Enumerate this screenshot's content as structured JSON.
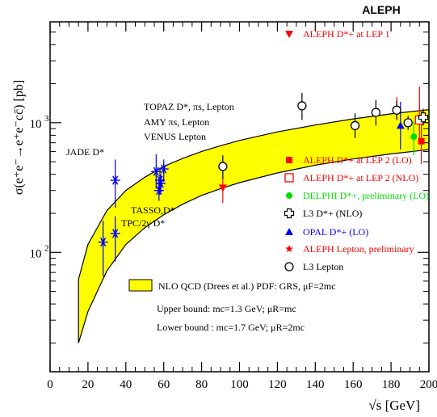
{
  "chart_data": {
    "type": "scatter",
    "header": "ALEPH",
    "xlabel": "√s [GeV]",
    "ylabel": "σ(e⁺e⁻→e⁺e⁻cc̄) [pb]",
    "xlim": [
      0,
      200
    ],
    "ylim_log": [
      12,
      6000
    ],
    "xticks": [
      0,
      20,
      40,
      60,
      80,
      100,
      120,
      140,
      160,
      180,
      200
    ],
    "yticks": [
      {
        "value": 100,
        "label": "10²"
      },
      {
        "value": 1000,
        "label": "10³"
      }
    ],
    "band": {
      "name": "NLO QCD (Drees et al.) PDF: GRS, μF=2mc",
      "color": "#ffff00",
      "x": [
        15,
        20,
        30,
        40,
        50,
        60,
        70,
        80,
        90,
        100,
        120,
        140,
        160,
        180,
        200
      ],
      "upper": [
        62,
        115,
        210,
        300,
        380,
        460,
        530,
        600,
        665,
        730,
        850,
        960,
        1070,
        1170,
        1260
      ],
      "lower": [
        20,
        35,
        72,
        115,
        155,
        195,
        235,
        275,
        310,
        345,
        410,
        470,
        525,
        575,
        620
      ]
    },
    "series": [
      {
        "name": "JADE D*",
        "color": "#0000ff",
        "marker": "asterisk",
        "points": [
          {
            "x": 34.4,
            "y": 360,
            "ylo": 220,
            "yhi": 520
          }
        ]
      },
      {
        "name": "TASSO,D*",
        "color": "#0000ff",
        "marker": "asterisk",
        "points": [
          {
            "x": 28.0,
            "y": 120,
            "ylo": 65,
            "yhi": 175
          },
          {
            "x": 34.4,
            "y": 140,
            "ylo": 85,
            "yhi": 190
          }
        ]
      },
      {
        "name": "TOPAZ D*, πs, Lepton",
        "color": "#0000ff",
        "marker": "asterisk",
        "points": [
          {
            "x": 56.0,
            "y": 420,
            "ylo": 310,
            "yhi": 570
          },
          {
            "x": 58.0,
            "y": 360,
            "ylo": 280,
            "yhi": 450
          },
          {
            "x": 60.0,
            "y": 440,
            "ylo": 350,
            "yhi": 520
          }
        ]
      },
      {
        "name": "AMY πs, Lepton",
        "color": "#0000ff",
        "marker": "asterisk",
        "points": [
          {
            "x": 57.5,
            "y": 300,
            "ylo": 250,
            "yhi": 360
          },
          {
            "x": 58.5,
            "y": 340,
            "ylo": 290,
            "yhi": 400
          }
        ]
      },
      {
        "name": "ALEPH D*+ at LEP 1",
        "color": "#ff0000",
        "marker": "triangle-down",
        "points": [
          {
            "x": 91.2,
            "y": 315,
            "ylo": 240,
            "yhi": 380
          }
        ]
      },
      {
        "name": "ALEPH D*+ at LEP 2 (LO)",
        "color": "#ff0000",
        "marker": "square",
        "points": [
          {
            "x": 196,
            "y": 720,
            "ylo": 480,
            "yhi": 1250
          }
        ]
      },
      {
        "name": "ALEPH D*+ at LEP 2 (NLO)",
        "color": "#ff0000",
        "marker": "open-square",
        "points": [
          {
            "x": 195,
            "y": 1050,
            "ylo": 700,
            "yhi": 1900
          }
        ]
      },
      {
        "name": "DELPHI D*+, preliminary (LO)",
        "color": "#00dd00",
        "marker": "circle",
        "points": [
          {
            "x": 192,
            "y": 780,
            "ylo": 560,
            "yhi": 1020
          }
        ]
      },
      {
        "name": "L3 D*+ (NLO)",
        "color": "#000000",
        "marker": "open-cross",
        "points": [
          {
            "x": 197,
            "y": 1100,
            "ylo": 950,
            "yhi": 1280
          }
        ]
      },
      {
        "name": "OPAL D*+ (LO)",
        "color": "#0000ff",
        "marker": "triangle-up",
        "points": [
          {
            "x": 185,
            "y": 950,
            "ylo": 620,
            "yhi": 1450
          }
        ]
      },
      {
        "name": "ALEPH Lepton, preliminary",
        "color": "#ff0000",
        "marker": "star",
        "points": [
          {
            "x": 183,
            "y": 1300,
            "ylo": 1050,
            "yhi": 1580
          }
        ]
      },
      {
        "name": "L3 Lepton",
        "color": "#000000",
        "marker": "open-circle",
        "points": [
          {
            "x": 91.2,
            "y": 460,
            "ylo": 370,
            "yhi": 560
          },
          {
            "x": 133,
            "y": 1350,
            "ylo": 1050,
            "yhi": 1700
          },
          {
            "x": 161,
            "y": 950,
            "ylo": 760,
            "yhi": 1180
          },
          {
            "x": 172,
            "y": 1200,
            "ylo": 950,
            "yhi": 1500
          },
          {
            "x": 183,
            "y": 1250,
            "ylo": 1050,
            "yhi": 1480
          },
          {
            "x": 189,
            "y": 1000,
            "ylo": 880,
            "yhi": 1130
          }
        ]
      }
    ],
    "annotations": [
      {
        "text": "TOPAZ D*, πs, Lepton"
      },
      {
        "text": "AMY πs, Lepton"
      },
      {
        "text": "VENUS Lepton"
      },
      {
        "text": "JADE D*"
      },
      {
        "text": "TASSO,D*"
      },
      {
        "text": "TPC/2γ D*"
      }
    ],
    "band_notes": [
      "Upper bound: mc=1.3 GeV; μR=mc",
      "Lower bound : mc=1.7 GeV; μR=2mc"
    ],
    "legend_placement": "right"
  }
}
